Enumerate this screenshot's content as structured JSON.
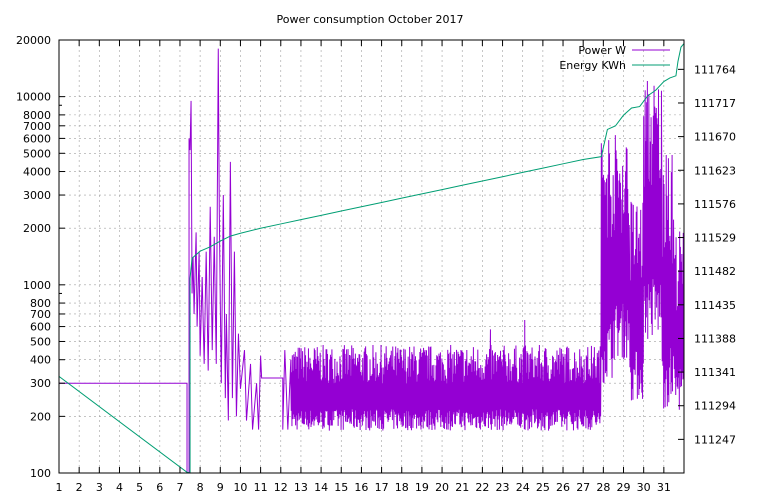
{
  "chart_data": {
    "type": "line",
    "title": "Power consumption October 2017",
    "xlabel": "",
    "ylabel": "",
    "y2label": "",
    "x_range": [
      1,
      32
    ],
    "x_ticks": [
      1,
      2,
      3,
      4,
      5,
      6,
      7,
      8,
      9,
      10,
      11,
      12,
      13,
      14,
      15,
      16,
      17,
      18,
      19,
      20,
      21,
      22,
      23,
      24,
      25,
      26,
      27,
      28,
      29,
      30,
      31
    ],
    "y_scale": "log",
    "y_range": [
      100,
      20000
    ],
    "y_ticks": [
      100,
      200,
      300,
      400,
      500,
      600,
      700,
      800,
      1000,
      2000,
      3000,
      4000,
      5000,
      6000,
      7000,
      8000,
      10000,
      20000
    ],
    "y2_range": [
      111200,
      111805
    ],
    "y2_ticks": [
      111247,
      111294,
      111341,
      111388,
      111435,
      111482,
      111529,
      111576,
      111623,
      111670,
      111717,
      111764
    ],
    "grid": true,
    "legend_position": "top-right",
    "series": [
      {
        "name": "Power W",
        "axis": "left",
        "color": "#9400d3",
        "points": [
          [
            1,
            300
          ],
          [
            7.35,
            300
          ],
          [
            7.35,
            100
          ],
          [
            7.45,
            100
          ],
          [
            7.45,
            6000
          ],
          [
            7.5,
            5200
          ],
          [
            7.55,
            9500
          ],
          [
            7.6,
            900
          ],
          [
            7.65,
            1400
          ],
          [
            7.7,
            700
          ],
          [
            7.8,
            1900
          ],
          [
            7.85,
            600
          ],
          [
            7.95,
            1500
          ],
          [
            8.0,
            420
          ],
          [
            8.1,
            1100
          ],
          [
            8.2,
            380
          ],
          [
            8.3,
            1500
          ],
          [
            8.4,
            350
          ],
          [
            8.5,
            2600
          ],
          [
            8.6,
            450
          ],
          [
            8.7,
            1800
          ],
          [
            8.8,
            380
          ],
          [
            8.9,
            18000
          ],
          [
            8.95,
            2500
          ],
          [
            9.0,
            800
          ],
          [
            9.05,
            300
          ],
          [
            9.15,
            3000
          ],
          [
            9.25,
            250
          ],
          [
            9.3,
            700
          ],
          [
            9.4,
            190
          ],
          [
            9.5,
            4500
          ],
          [
            9.6,
            250
          ],
          [
            9.7,
            1500
          ],
          [
            9.8,
            200
          ],
          [
            9.9,
            550
          ],
          [
            10.0,
            280
          ],
          [
            10.2,
            450
          ],
          [
            10.3,
            190
          ],
          [
            10.5,
            380
          ],
          [
            10.6,
            170
          ],
          [
            10.8,
            300
          ],
          [
            10.9,
            170
          ],
          [
            11.0,
            420
          ],
          [
            11.05,
            320
          ],
          [
            12.1,
            320
          ],
          [
            12.1,
            170
          ],
          [
            12.2,
            450
          ],
          [
            12.35,
            170
          ],
          [
            12.5,
            400
          ]
        ],
        "segments": [
          {
            "x_start": 12.5,
            "x_end": 27.9,
            "low": 168,
            "high": 480,
            "note_peaks": [
              [
                22.4,
                580
              ],
              [
                24.1,
                650
              ]
            ]
          },
          {
            "x_start": 27.9,
            "x_end": 28.45,
            "low": 300,
            "high": 7200
          },
          {
            "x_start": 28.45,
            "x_end": 29.3,
            "low": 400,
            "high": 6500
          },
          {
            "x_start": 29.3,
            "x_end": 30.0,
            "low": 240,
            "high": 3000
          },
          {
            "x_start": 30.0,
            "x_end": 30.9,
            "low": 500,
            "high": 13000
          },
          {
            "x_start": 30.9,
            "x_end": 31.5,
            "low": 220,
            "high": 5000
          },
          {
            "x_start": 31.5,
            "x_end": 32.0,
            "low": 215,
            "high": 2000
          }
        ]
      },
      {
        "name": "Energy KWh",
        "axis": "right",
        "color": "#009e73",
        "points": [
          [
            1,
            111335
          ],
          [
            7.35,
            111201
          ],
          [
            7.5,
            111200
          ],
          [
            7.5,
            111472
          ],
          [
            7.6,
            111500
          ],
          [
            8.0,
            111510
          ],
          [
            8.5,
            111516
          ],
          [
            9.0,
            111524
          ],
          [
            9.5,
            111531
          ],
          [
            10,
            111535
          ],
          [
            11,
            111542
          ],
          [
            12,
            111548
          ],
          [
            13,
            111554
          ],
          [
            14,
            111560
          ],
          [
            15,
            111566
          ],
          [
            16,
            111572
          ],
          [
            17,
            111578
          ],
          [
            18,
            111584
          ],
          [
            19,
            111590
          ],
          [
            20,
            111596
          ],
          [
            21,
            111602
          ],
          [
            22,
            111608
          ],
          [
            23,
            111614
          ],
          [
            24,
            111620
          ],
          [
            25,
            111626
          ],
          [
            26,
            111632
          ],
          [
            27,
            111638
          ],
          [
            27.9,
            111642
          ],
          [
            28.2,
            111680
          ],
          [
            28.6,
            111685
          ],
          [
            29.0,
            111700
          ],
          [
            29.4,
            111710
          ],
          [
            29.8,
            111712
          ],
          [
            30.2,
            111727
          ],
          [
            30.6,
            111735
          ],
          [
            31.0,
            111747
          ],
          [
            31.3,
            111752
          ],
          [
            31.6,
            111755
          ],
          [
            31.7,
            111775
          ],
          [
            31.85,
            111795
          ],
          [
            32.0,
            111800
          ]
        ]
      }
    ]
  }
}
